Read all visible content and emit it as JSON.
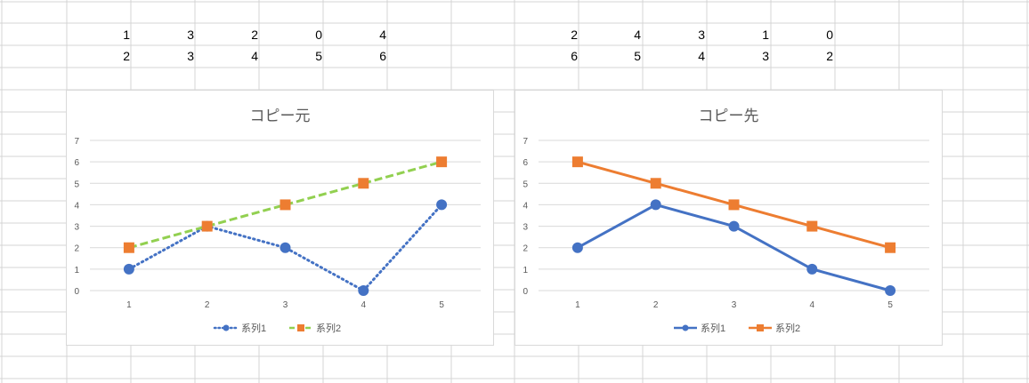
{
  "sheet": {
    "block1": {
      "row1": [
        "1",
        "3",
        "2",
        "0",
        "4"
      ],
      "row2": [
        "2",
        "3",
        "4",
        "5",
        "6"
      ]
    },
    "block2": {
      "row1": [
        "2",
        "4",
        "3",
        "1",
        "0"
      ],
      "row2": [
        "6",
        "5",
        "4",
        "3",
        "2"
      ]
    }
  },
  "charts": [
    {
      "title": "コピー元",
      "chart_data": {
        "type": "line",
        "title": "コピー元",
        "categories": [
          "1",
          "2",
          "3",
          "4",
          "5"
        ],
        "y_ticks": [
          "0",
          "1",
          "2",
          "3",
          "4",
          "5",
          "6",
          "7"
        ],
        "ylim": [
          0,
          7
        ],
        "grid": true,
        "legend_position": "bottom",
        "series": [
          {
            "name": "系列1",
            "values": [
              1,
              3,
              2,
              0,
              4
            ],
            "color": "#4472C4",
            "line": "dotted",
            "marker": "circle"
          },
          {
            "name": "系列2",
            "values": [
              2,
              3,
              4,
              5,
              6
            ],
            "color": "#ED7D31",
            "line_color": "#92D050",
            "line": "dashed",
            "marker": "square"
          }
        ]
      }
    },
    {
      "title": "コピー先",
      "chart_data": {
        "type": "line",
        "title": "コピー先",
        "categories": [
          "1",
          "2",
          "3",
          "4",
          "5"
        ],
        "y_ticks": [
          "0",
          "1",
          "2",
          "3",
          "4",
          "5",
          "6",
          "7"
        ],
        "ylim": [
          0,
          7
        ],
        "grid": true,
        "legend_position": "bottom",
        "series": [
          {
            "name": "系列1",
            "values": [
              2,
              4,
              3,
              1,
              0
            ],
            "color": "#4472C4",
            "line": "solid",
            "marker": "circle"
          },
          {
            "name": "系列2",
            "values": [
              6,
              5,
              4,
              3,
              2
            ],
            "color": "#ED7D31",
            "line": "solid",
            "marker": "square"
          }
        ]
      }
    }
  ]
}
